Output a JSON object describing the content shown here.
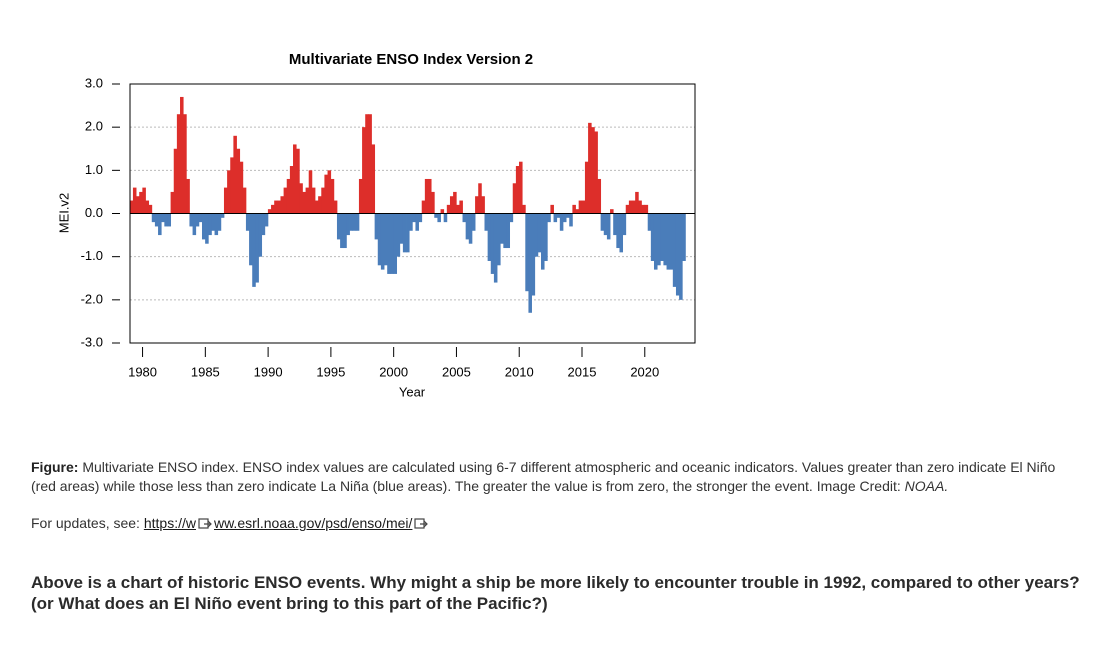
{
  "chart_data": {
    "type": "bar",
    "title": "Multivariate ENSO Index Version 2",
    "x_label": "Year",
    "y_label": "MEI.v2",
    "xlim": [
      1979,
      2024
    ],
    "ylim": [
      -3,
      3
    ],
    "xticks": [
      1980,
      1985,
      1990,
      1995,
      2000,
      2005,
      2010,
      2015,
      2020
    ],
    "yticks": [
      {
        "value": 3,
        "label": "3.0"
      },
      {
        "value": 2,
        "label": "2.0"
      },
      {
        "value": 1,
        "label": "1.0"
      },
      {
        "value": 0,
        "label": "0.0"
      },
      {
        "value": -1,
        "label": "-1.0"
      },
      {
        "value": -2,
        "label": "-2.0"
      },
      {
        "value": -3,
        "label": "-3.0"
      }
    ],
    "grid": true,
    "positive_color": "#dd2e2a",
    "negative_color": "#4a7dba",
    "x": [
      1979.125,
      1979.375,
      1979.625,
      1979.875,
      1980.125,
      1980.375,
      1980.625,
      1980.875,
      1981.125,
      1981.375,
      1981.625,
      1981.875,
      1982.125,
      1982.375,
      1982.625,
      1982.875,
      1983.125,
      1983.375,
      1983.625,
      1983.875,
      1984.125,
      1984.375,
      1984.625,
      1984.875,
      1985.125,
      1985.375,
      1985.625,
      1985.875,
      1986.125,
      1986.375,
      1986.625,
      1986.875,
      1987.125,
      1987.375,
      1987.625,
      1987.875,
      1988.125,
      1988.375,
      1988.625,
      1988.875,
      1989.125,
      1989.375,
      1989.625,
      1989.875,
      1990.125,
      1990.375,
      1990.625,
      1990.875,
      1991.125,
      1991.375,
      1991.625,
      1991.875,
      1992.125,
      1992.375,
      1992.625,
      1992.875,
      1993.125,
      1993.375,
      1993.625,
      1993.875,
      1994.125,
      1994.375,
      1994.625,
      1994.875,
      1995.125,
      1995.375,
      1995.625,
      1995.875,
      1996.125,
      1996.375,
      1996.625,
      1996.875,
      1997.125,
      1997.375,
      1997.625,
      1997.875,
      1998.125,
      1998.375,
      1998.625,
      1998.875,
      1999.125,
      1999.375,
      1999.625,
      1999.875,
      2000.125,
      2000.375,
      2000.625,
      2000.875,
      2001.125,
      2001.375,
      2001.625,
      2001.875,
      2002.125,
      2002.375,
      2002.625,
      2002.875,
      2003.125,
      2003.375,
      2003.625,
      2003.875,
      2004.125,
      2004.375,
      2004.625,
      2004.875,
      2005.125,
      2005.375,
      2005.625,
      2005.875,
      2006.125,
      2006.375,
      2006.625,
      2006.875,
      2007.125,
      2007.375,
      2007.625,
      2007.875,
      2008.125,
      2008.375,
      2008.625,
      2008.875,
      2009.125,
      2009.375,
      2009.625,
      2009.875,
      2010.125,
      2010.375,
      2010.625,
      2010.875,
      2011.125,
      2011.375,
      2011.625,
      2011.875,
      2012.125,
      2012.375,
      2012.625,
      2012.875,
      2013.125,
      2013.375,
      2013.625,
      2013.875,
      2014.125,
      2014.375,
      2014.625,
      2014.875,
      2015.125,
      2015.375,
      2015.625,
      2015.875,
      2016.125,
      2016.375,
      2016.625,
      2016.875,
      2017.125,
      2017.375,
      2017.625,
      2017.875,
      2018.125,
      2018.375,
      2018.625,
      2018.875,
      2019.125,
      2019.375,
      2019.625,
      2019.875,
      2020.125,
      2020.375,
      2020.625,
      2020.875,
      2021.125,
      2021.375,
      2021.625,
      2021.875,
      2022.125,
      2022.375,
      2022.625,
      2022.875,
      2023.125
    ],
    "values": [
      0.3,
      0.6,
      0.4,
      0.5,
      0.6,
      0.3,
      0.2,
      -0.2,
      -0.3,
      -0.5,
      -0.2,
      -0.3,
      -0.3,
      0.5,
      1.5,
      2.3,
      2.7,
      2.3,
      0.8,
      -0.3,
      -0.5,
      -0.3,
      -0.2,
      -0.6,
      -0.7,
      -0.5,
      -0.4,
      -0.5,
      -0.4,
      -0.1,
      0.6,
      1.0,
      1.3,
      1.8,
      1.5,
      1.2,
      0.6,
      -0.4,
      -1.2,
      -1.7,
      -1.6,
      -1.0,
      -0.5,
      -0.3,
      0.1,
      0.2,
      0.3,
      0.3,
      0.4,
      0.6,
      0.8,
      1.1,
      1.6,
      1.5,
      0.7,
      0.5,
      0.6,
      1.0,
      0.6,
      0.3,
      0.4,
      0.6,
      0.9,
      1.0,
      0.8,
      0.3,
      -0.6,
      -0.8,
      -0.8,
      -0.5,
      -0.4,
      -0.4,
      -0.4,
      0.8,
      2.0,
      2.3,
      2.3,
      1.6,
      -0.6,
      -1.2,
      -1.3,
      -1.2,
      -1.4,
      -1.4,
      -1.4,
      -1.0,
      -0.7,
      -0.9,
      -0.9,
      -0.4,
      -0.2,
      -0.4,
      -0.2,
      0.3,
      0.8,
      0.8,
      0.5,
      -0.1,
      -0.2,
      0.1,
      -0.2,
      0.2,
      0.4,
      0.5,
      0.2,
      0.3,
      -0.2,
      -0.6,
      -0.7,
      -0.4,
      0.4,
      0.7,
      0.4,
      -0.4,
      -1.1,
      -1.4,
      -1.6,
      -1.2,
      -0.7,
      -0.8,
      -0.8,
      -0.2,
      0.7,
      1.1,
      1.2,
      0.2,
      -1.8,
      -2.3,
      -1.9,
      -1.0,
      -0.9,
      -1.3,
      -1.1,
      -0.2,
      0.2,
      -0.2,
      -0.1,
      -0.4,
      -0.2,
      -0.1,
      -0.3,
      0.2,
      0.1,
      0.3,
      0.3,
      1.2,
      2.1,
      2.0,
      1.9,
      0.8,
      -0.4,
      -0.5,
      -0.6,
      0.1,
      -0.5,
      -0.8,
      -0.9,
      -0.5,
      0.2,
      0.3,
      0.3,
      0.5,
      0.3,
      0.2,
      0.2,
      -0.4,
      -1.1,
      -1.3,
      -1.2,
      -1.1,
      -1.2,
      -1.3,
      -1.3,
      -1.7,
      -1.9,
      -2.0,
      -1.1
    ]
  },
  "caption": {
    "label": "Figure:",
    "text": "Multivariate ENSO index. ENSO index values are calculated using 6-7 different atmospheric and oceanic indicators. Values greater than zero indicate El Niño (red areas) while those less than zero indicate La Niña (blue areas). The greater the value is from zero, the stronger the event. Image Credit:",
    "credit": "NOAA."
  },
  "updates": {
    "text": "For updates, see:",
    "link_parts": [
      "https://w",
      "ww.esrl.noaa.gov/psd/enso/mei/"
    ]
  },
  "question": "Above is a chart of historic ENSO events. Why might a ship be more likely to encounter trouble in 1992, compared to other years? (or What does an El Niño event bring to this part of the Pacific?)"
}
